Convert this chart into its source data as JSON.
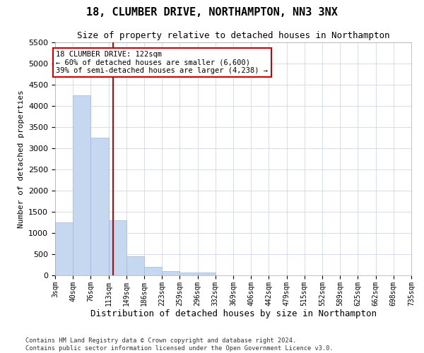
{
  "title": "18, CLUMBER DRIVE, NORTHAMPTON, NN3 3NX",
  "subtitle": "Size of property relative to detached houses in Northampton",
  "xlabel": "Distribution of detached houses by size in Northampton",
  "ylabel": "Number of detached properties",
  "property_size": 122,
  "annotation_title": "18 CLUMBER DRIVE: 122sqm",
  "annotation_line1": "← 60% of detached houses are smaller (6,600)",
  "annotation_line2": "39% of semi-detached houses are larger (4,238) →",
  "footer_line1": "Contains HM Land Registry data © Crown copyright and database right 2024.",
  "footer_line2": "Contains public sector information licensed under the Open Government Licence v3.0.",
  "bar_color": "#c5d8f0",
  "bar_edge_color": "#a0b8d8",
  "vline_color": "#cc0000",
  "annotation_box_edge": "#cc0000",
  "ylim": [
    0,
    5500
  ],
  "yticks": [
    0,
    500,
    1000,
    1500,
    2000,
    2500,
    3000,
    3500,
    4000,
    4500,
    5000,
    5500
  ],
  "bin_edges": [
    3,
    40,
    76,
    113,
    149,
    186,
    223,
    259,
    296,
    332,
    369,
    406,
    442,
    479,
    515,
    552,
    589,
    625,
    662,
    698,
    735
  ],
  "bar_heights": [
    1250,
    4250,
    3250,
    1300,
    450,
    200,
    100,
    60,
    60,
    0,
    0,
    0,
    0,
    0,
    0,
    0,
    0,
    0,
    0,
    0
  ],
  "tick_labels": [
    "3sqm",
    "40sqm",
    "76sqm",
    "113sqm",
    "149sqm",
    "186sqm",
    "223sqm",
    "259sqm",
    "296sqm",
    "332sqm",
    "369sqm",
    "406sqm",
    "442sqm",
    "479sqm",
    "515sqm",
    "552sqm",
    "589sqm",
    "625sqm",
    "662sqm",
    "698sqm",
    "735sqm"
  ],
  "background_color": "#ffffff",
  "grid_color": "#d0d8e8",
  "title_fontsize": 11,
  "subtitle_fontsize": 9,
  "ylabel_fontsize": 8,
  "xlabel_fontsize": 9,
  "ytick_fontsize": 8,
  "xtick_fontsize": 7
}
